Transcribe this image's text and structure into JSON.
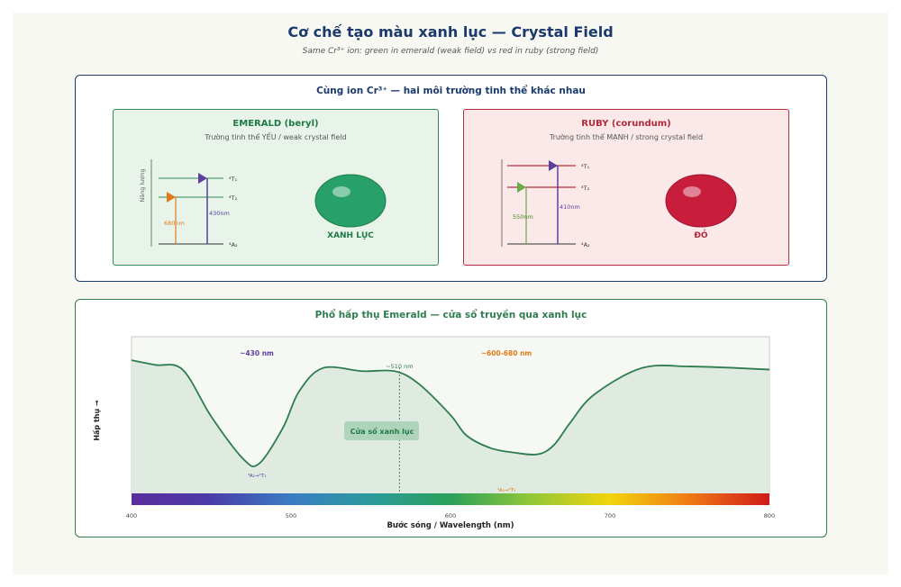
{
  "title": "Cơ chế tạo màu xanh lục — Crystal Field",
  "subtitle": "Same Cr³⁺ ion: green in emerald (weak field) vs red in ruby (strong field)",
  "top_panel": {
    "title": "Cùng ion Cr³⁺ — hai môi trường tinh thể khác nhau",
    "emerald": {
      "title": "EMERALD (beryl)",
      "subtitle": "Trường tinh thể YẾU / weak crystal field",
      "energy_axis_label": "Năng lượng",
      "level_t1": "⁴T₁",
      "level_t2": "⁴T₂",
      "level_ground": "⁴A₂",
      "transition_low": "680nm",
      "transition_high": "430nm",
      "gem_label": "XANH LỤC",
      "gem_color": "#27a06a"
    },
    "ruby": {
      "title": "RUBY (corundum)",
      "subtitle": "Trường tinh thể MẠNH / strong crystal field",
      "level_t1": "⁴T₁",
      "level_t2": "⁴T₂",
      "level_ground": "⁴A₂",
      "transition_low": "550nm",
      "transition_high": "410nm",
      "gem_label": "ĐỎ",
      "gem_color": "#c81e3c"
    }
  },
  "bottom_panel": {
    "title": "Phổ hấp thụ Emerald — cửa sổ truyền qua xanh lục"
  },
  "chart_data": {
    "type": "area",
    "xlabel": "Bước sóng / Wavelength (nm)",
    "ylabel": "Hấp thụ →",
    "xlim": [
      400,
      800
    ],
    "ylim": [
      0,
      1
    ],
    "xticks": [
      "400",
      "500",
      "600",
      "700",
      "800"
    ],
    "x": [
      400,
      415,
      432,
      450,
      470,
      480,
      495,
      505,
      520,
      545,
      565,
      580,
      600,
      610,
      625,
      640,
      655,
      665,
      675,
      690,
      720,
      750,
      780,
      800
    ],
    "values": [
      0.85,
      0.82,
      0.79,
      0.49,
      0.22,
      0.19,
      0.42,
      0.65,
      0.8,
      0.78,
      0.78,
      0.7,
      0.5,
      0.37,
      0.29,
      0.26,
      0.25,
      0.31,
      0.45,
      0.63,
      0.8,
      0.81,
      0.8,
      0.79
    ],
    "annotations": {
      "peak1_label": "~430 nm",
      "peak2_label": "~600-680 nm",
      "window_label": "~510 nm",
      "window_box": "Cửa sổ xanh lục",
      "trans1": "⁴A₂→⁴T₁",
      "trans2": "⁴A₂→⁴T₂"
    },
    "colors": {
      "line": "#2e7d4f",
      "fill": "#dfeae1",
      "peak1": "#5b3f9e",
      "peak2": "#e07b1a"
    }
  }
}
